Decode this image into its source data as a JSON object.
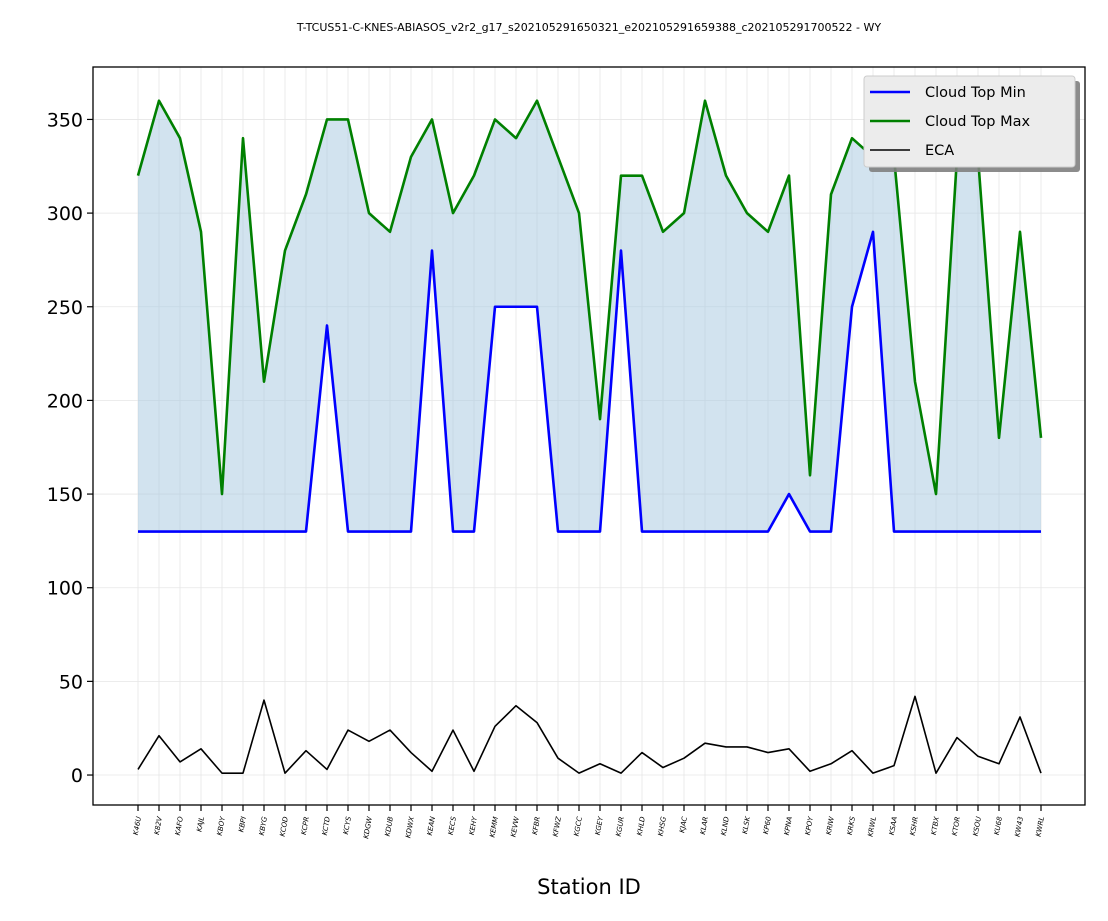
{
  "chart_data": {
    "type": "line",
    "title": "T-TCUS51-C-KNES-ABIASOS_v2r2_g17_s202105291650321_e202105291659388_c202105291700522 - WY",
    "xlabel": "Station ID",
    "ylabel": "",
    "ylim": [
      -16,
      378
    ],
    "yticks": [
      0,
      50,
      100,
      150,
      200,
      250,
      300,
      350
    ],
    "grid": true,
    "legend_position": "top-right",
    "categories": [
      "K46U",
      "K82V",
      "KAFO",
      "KAJL",
      "KBOY",
      "KBPI",
      "KBYG",
      "KCOD",
      "KCPR",
      "KCTD",
      "KCYS",
      "KDGW",
      "KDUB",
      "KDWX",
      "KEAN",
      "KECS",
      "KEHY",
      "KEMM",
      "KEVW",
      "KFBR",
      "KFWZ",
      "KGCC",
      "KGEY",
      "KGUR",
      "KHLD",
      "KHSG",
      "KJAC",
      "KLAR",
      "KLND",
      "KLSK",
      "KP60",
      "KPNA",
      "KPOY",
      "KRIW",
      "KRKS",
      "KRWL",
      "KSAA",
      "KSHR",
      "KTBX",
      "KTOR",
      "KSOU",
      "KU68",
      "KW43",
      "KWRL"
    ],
    "series": [
      {
        "name": "Cloud Top Min",
        "color": "#0000ff",
        "values": [
          130,
          130,
          130,
          130,
          130,
          130,
          130,
          130,
          130,
          240,
          130,
          130,
          130,
          130,
          280,
          130,
          130,
          250,
          250,
          250,
          130,
          130,
          130,
          280,
          130,
          130,
          130,
          130,
          130,
          130,
          130,
          150,
          130,
          130,
          250,
          290,
          130,
          130,
          130,
          130,
          130,
          130,
          130,
          130
        ]
      },
      {
        "name": "Cloud Top Max",
        "color": "#008000",
        "values": [
          320,
          360,
          340,
          290,
          150,
          340,
          210,
          280,
          310,
          350,
          350,
          300,
          290,
          330,
          350,
          300,
          320,
          350,
          340,
          360,
          330,
          300,
          190,
          320,
          320,
          290,
          300,
          360,
          320,
          300,
          290,
          320,
          160,
          310,
          340,
          330,
          330,
          210,
          150,
          330,
          330,
          180,
          290,
          180
        ]
      },
      {
        "name": "ECA",
        "color": "#000000",
        "values": [
          3,
          21,
          7,
          14,
          1,
          1,
          40,
          1,
          13,
          3,
          24,
          18,
          24,
          12,
          2,
          24,
          2,
          26,
          37,
          28,
          9,
          1,
          6,
          1,
          12,
          4,
          9,
          17,
          15,
          15,
          12,
          14,
          2,
          6,
          13,
          1,
          5,
          42,
          1,
          20,
          10,
          6,
          31,
          1
        ]
      }
    ],
    "fill_between": {
      "lower": "Cloud Top Min",
      "upper": "Cloud Top Max",
      "color": "#a6c8e0"
    }
  }
}
